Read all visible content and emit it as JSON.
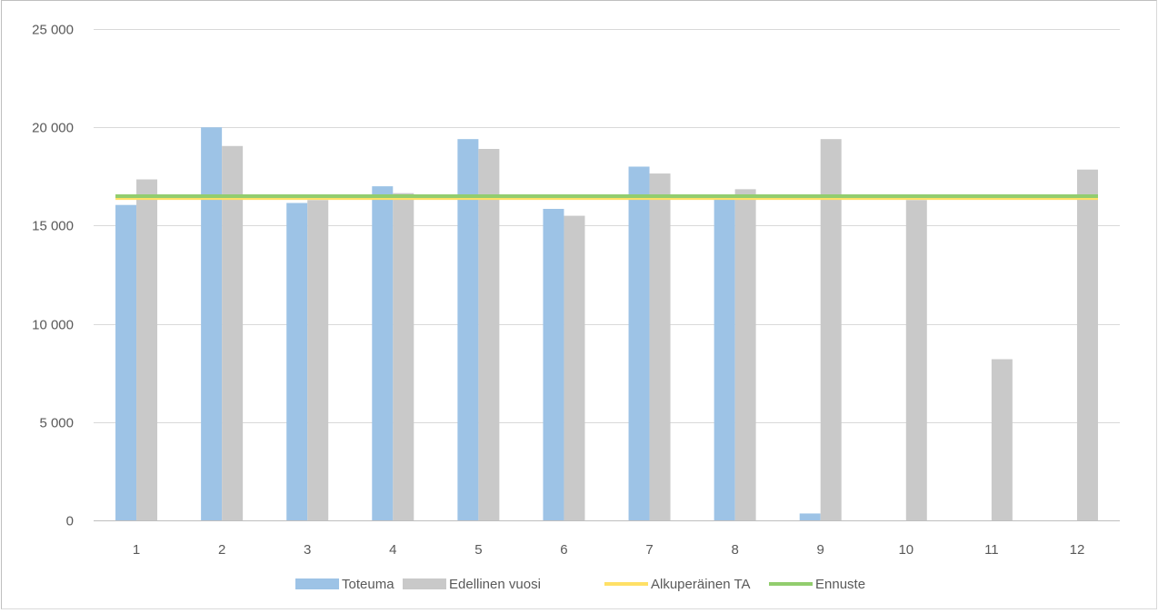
{
  "chart_data": {
    "type": "bar",
    "title": "",
    "xlabel": "",
    "ylabel": "",
    "categories": [
      "1",
      "2",
      "3",
      "4",
      "5",
      "6",
      "7",
      "8",
      "9",
      "10",
      "11",
      "12"
    ],
    "series": [
      {
        "name": "Toteuma",
        "type": "bar",
        "color": "#9dc3e6",
        "values": [
          16050,
          20000,
          16150,
          17000,
          19400,
          15850,
          18000,
          16500,
          350,
          null,
          null,
          null
        ]
      },
      {
        "name": "Edellinen vuosi",
        "type": "bar",
        "color": "#c9c9c9",
        "values": [
          17350,
          19050,
          16300,
          16650,
          18900,
          15500,
          17650,
          16850,
          19400,
          16300,
          8200,
          17850
        ]
      },
      {
        "name": "Alkuperäinen TA",
        "type": "line",
        "color": "#ffe066",
        "values": [
          16400,
          16400,
          16400,
          16400,
          16400,
          16400,
          16400,
          16400,
          16400,
          16400,
          16400,
          16400
        ]
      },
      {
        "name": "Ennuste",
        "type": "line",
        "color": "#92cd6e",
        "values": [
          16500,
          16500,
          16500,
          16500,
          16500,
          16500,
          16500,
          16500,
          16500,
          16500,
          16500,
          16500
        ]
      }
    ],
    "ylim": [
      0,
      25000
    ],
    "yticks": [
      0,
      5000,
      10000,
      15000,
      20000,
      25000
    ],
    "ytick_labels": [
      "0",
      "5 000",
      "10 000",
      "15 000",
      "20 000",
      "25 000"
    ],
    "grid": true,
    "legend_position": "bottom"
  }
}
